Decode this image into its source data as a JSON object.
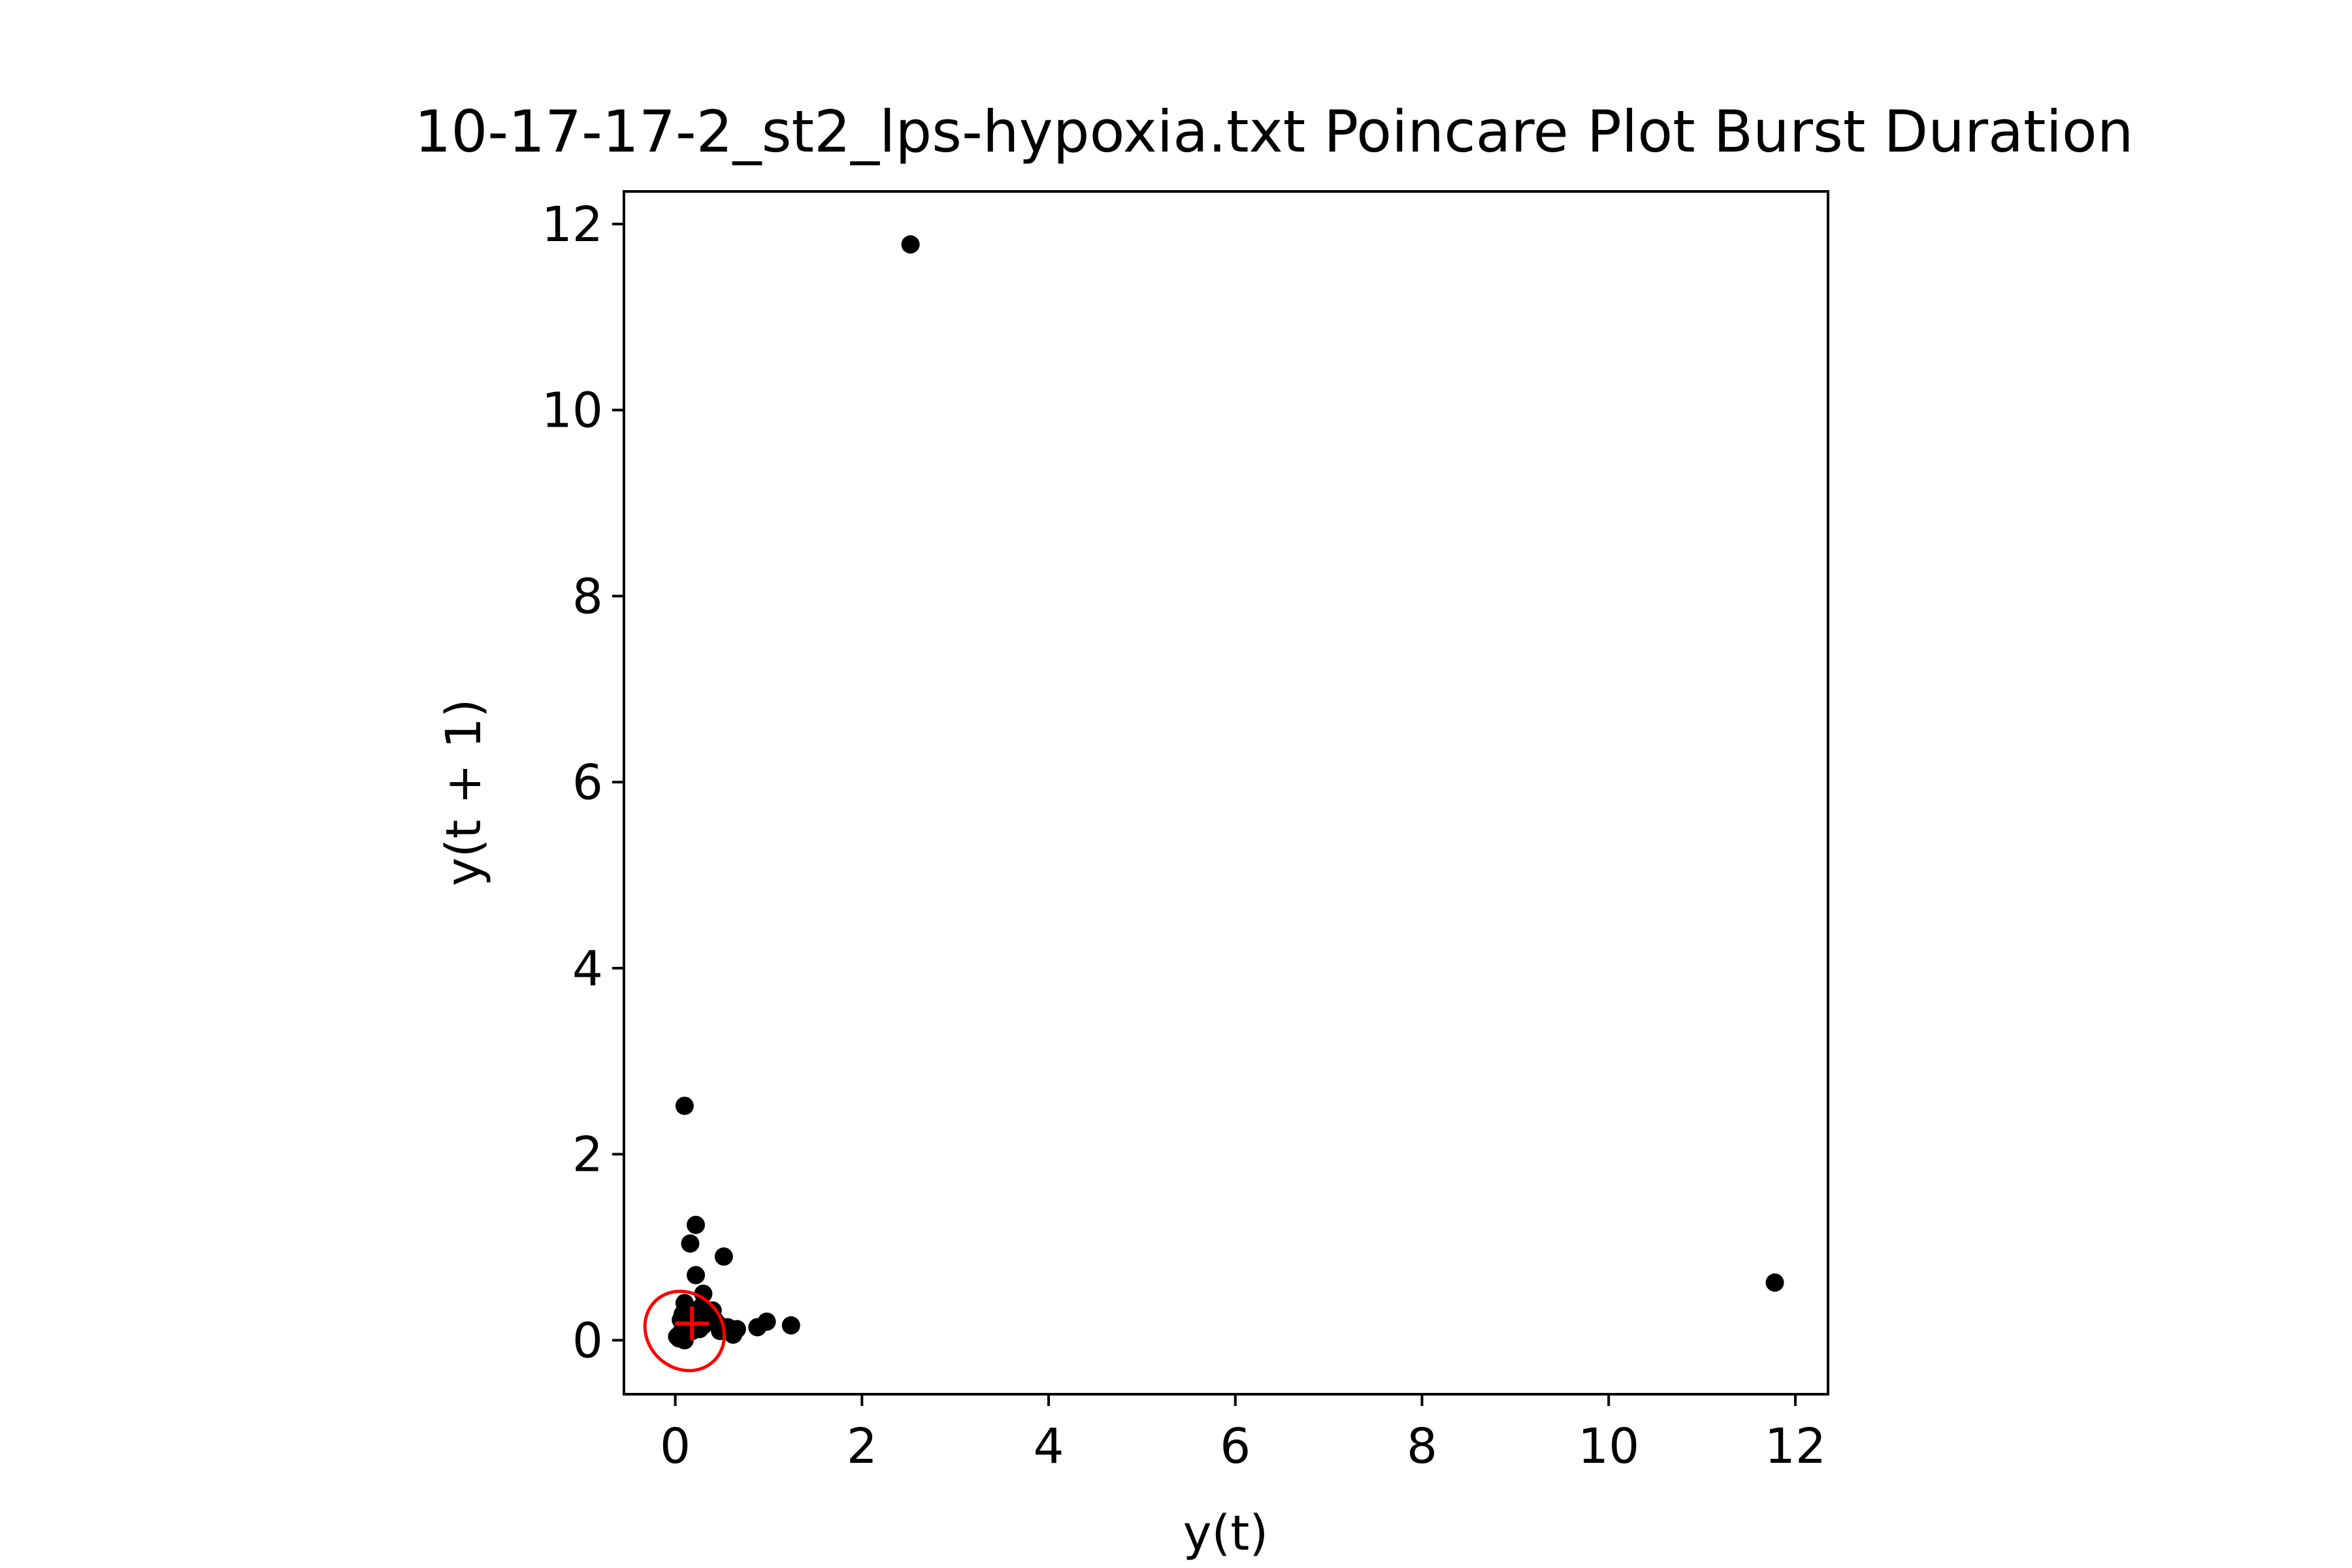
{
  "chart_data": {
    "type": "scatter",
    "title": "10-17-17-2_st2_lps-hypoxia.txt Poincare Plot Burst Duration",
    "xlabel": "y(t)",
    "ylabel": "y(t + 1)",
    "xlim": [
      -0.55,
      12.35
    ],
    "ylim": [
      -0.58,
      12.35
    ],
    "xticks": [
      0,
      2,
      4,
      6,
      8,
      10,
      12
    ],
    "yticks": [
      0,
      2,
      4,
      6,
      8,
      10,
      12
    ],
    "grid": false,
    "legend": "none",
    "points_color": "#000000",
    "overlay_color": "#ff0000",
    "series": [
      {
        "x": [
          2.52,
          11.78,
          0.1,
          0.22,
          0.16,
          0.52,
          0.22,
          0.3,
          0.1,
          0.4,
          0.35,
          0.06,
          0.14,
          0.5,
          0.66,
          0.62,
          0.98,
          0.88,
          1.24,
          0.06,
          0.02,
          0.04,
          0.1,
          0.18,
          0.26,
          0.3,
          0.36,
          0.42,
          0.48,
          0.56,
          0.12,
          0.08,
          0.28,
          0.2,
          0.45
        ],
        "y": [
          11.78,
          0.62,
          2.52,
          1.24,
          1.04,
          0.9,
          0.7,
          0.5,
          0.4,
          0.32,
          0.26,
          0.22,
          0.18,
          0.14,
          0.12,
          0.06,
          0.2,
          0.14,
          0.16,
          0.08,
          0.04,
          0.02,
          0.0,
          0.1,
          0.12,
          0.16,
          0.2,
          0.22,
          0.1,
          0.14,
          0.34,
          0.28,
          0.36,
          0.3,
          0.18
        ]
      }
    ],
    "centroid": {
      "x": 0.18,
      "y": 0.18
    },
    "ellipse": {
      "cx": 0.1,
      "cy": 0.1,
      "rx": 0.4,
      "ry": 0.45,
      "angle": -45
    }
  }
}
